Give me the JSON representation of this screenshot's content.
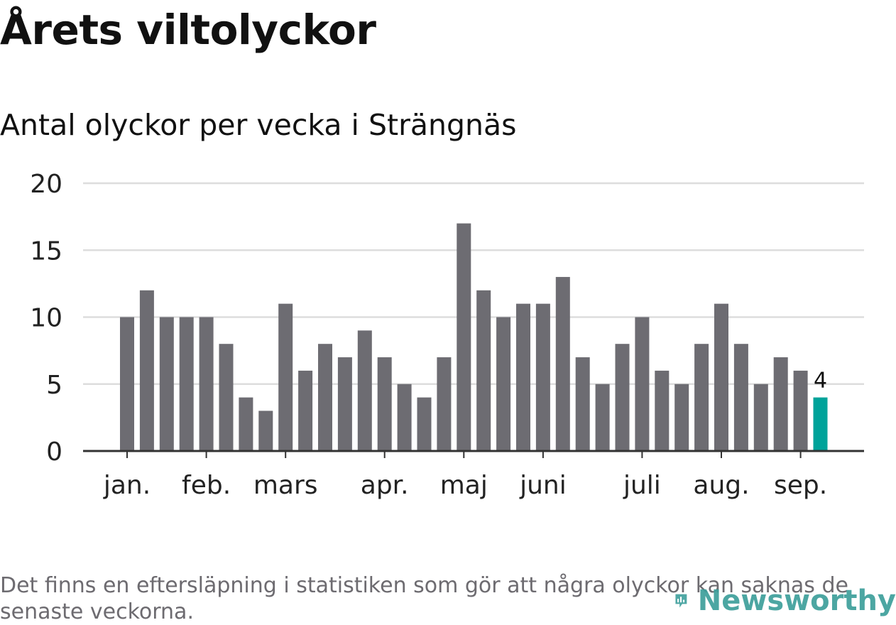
{
  "header": {
    "title": "Årets viltolyckor",
    "subtitle": "Antal olyckor per vecka i Strängnäs"
  },
  "colors": {
    "bar": "#6d6c72",
    "highlight": "#00a39a",
    "grid": "#dddddd",
    "axis": "#333333",
    "logo": "#3d9f9b"
  },
  "chart_data": {
    "type": "bar",
    "values": [
      10,
      12,
      10,
      10,
      10,
      8,
      4,
      3,
      11,
      6,
      8,
      7,
      9,
      7,
      5,
      4,
      7,
      17,
      12,
      10,
      11,
      11,
      13,
      7,
      5,
      8,
      10,
      6,
      5,
      8,
      11,
      8,
      5,
      7,
      6,
      4
    ],
    "highlight_last": true,
    "last_value_label": "4",
    "ylim": [
      0,
      20
    ],
    "yticks": [
      "0",
      "5",
      "10",
      "15",
      "20"
    ],
    "month_labels": [
      {
        "label": "jan.",
        "bar_index": 0
      },
      {
        "label": "feb.",
        "bar_index": 4
      },
      {
        "label": "mars",
        "bar_index": 8
      },
      {
        "label": "apr.",
        "bar_index": 13
      },
      {
        "label": "maj",
        "bar_index": 17
      },
      {
        "label": "juni",
        "bar_index": 21
      },
      {
        "label": "juli",
        "bar_index": 26
      },
      {
        "label": "aug.",
        "bar_index": 30
      },
      {
        "label": "sep.",
        "bar_index": 34
      }
    ],
    "grid": true,
    "xlabel": "",
    "ylabel": ""
  },
  "footer": {
    "note": "Det finns en eftersläpning i statistiken som gör att några olyckor kan saknas de senaste veckorna.",
    "brand": "Newsworthy",
    "brand_icon": "newsworthy-logo-icon"
  }
}
